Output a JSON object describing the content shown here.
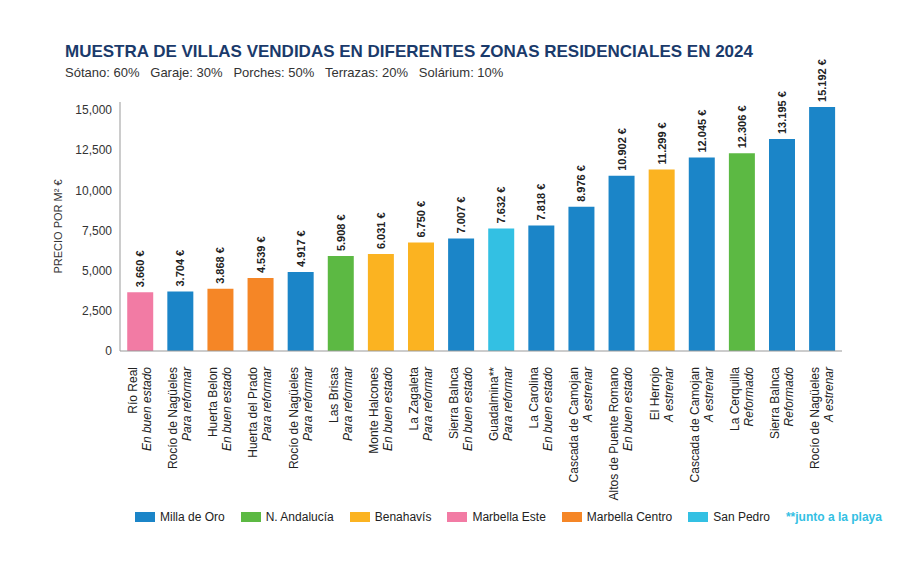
{
  "chart_data": {
    "type": "bar",
    "title": "MUESTRA DE VILLAS VENDIDAS EN DIFERENTES ZONAS RESIDENCIALES EN 2024",
    "subtitle": "Sótano: 60%   Garaje: 30%   Porches: 50%   Terrazas: 20%   Solárium: 10%",
    "y_label": "PRECIO POR M² €",
    "categories": [
      "Río Real",
      "Rocío de Nagüeles",
      "Huerta Belon",
      "Huerta del Prado",
      "Rocío de Nagüeles",
      "Las Brisas",
      "Monte Halcones",
      "La Zagaleta",
      "Sierra Balnca",
      "Guadalmina**",
      "La Carolina",
      "Cascada de Camojan",
      "Altos de Puente Romano",
      "El Herrojo",
      "Cascada de Camojan",
      "La Cerquilla",
      "Sierra Balnca",
      "Rocío de Nagüeles"
    ],
    "conditions": [
      "En buen estado",
      "Para reformar",
      "En buen estado",
      "Para reformar",
      "Para reformar",
      "Para reformar",
      "En buen estado",
      "Para reformar",
      "En buen estado",
      "Para reformar",
      "En buen estado",
      "A estrenar",
      "En buen estado",
      "A estrenar",
      "A estrenar",
      "Reformado",
      "Reformado",
      "A estrenar"
    ],
    "values": [
      3660,
      3704,
      3868,
      4539,
      4917,
      5908,
      6031,
      6750,
      7007,
      7632,
      7818,
      8976,
      10902,
      11299,
      12045,
      12306,
      13195,
      15192
    ],
    "value_labels": [
      "3.660 €",
      "3.704 €",
      "3.868 €",
      "4.539 €",
      "4.917 €",
      "5.908 €",
      "6.031 €",
      "6.750 €",
      "7.007 €",
      "7.632 €",
      "7.818 €",
      "8.976 €",
      "10.902 €",
      "11.299 €",
      "12.045 €",
      "12.306 €",
      "13.195 €",
      "15.192 €"
    ],
    "colors": [
      "#f27ba4",
      "#1b85c8",
      "#f58626",
      "#f58626",
      "#1b85c8",
      "#5cb943",
      "#fbb321",
      "#fbb321",
      "#1b85c8",
      "#33c0e3",
      "#1b85c8",
      "#1b85c8",
      "#1b85c8",
      "#fbb321",
      "#1b85c8",
      "#5cb943",
      "#1b85c8",
      "#1b85c8"
    ],
    "legend_entries": [
      {
        "name": "Milla de Oro",
        "color": "#1b85c8"
      },
      {
        "name": "N. Andalucía",
        "color": "#5cb943"
      },
      {
        "name": "Benahavís",
        "color": "#fbb321"
      },
      {
        "name": "Marbella Este",
        "color": "#f27ba4"
      },
      {
        "name": "Marbella Centro",
        "color": "#f58626"
      },
      {
        "name": "San Pedro",
        "color": "#33c0e3"
      }
    ],
    "note": "**junto a la playa",
    "ylim": [
      0,
      15500
    ],
    "yticks": [
      0,
      {
        "value": 2500,
        "label": "2,500"
      },
      {
        "value": 5000,
        "label": "5,000"
      },
      {
        "value": 7500,
        "label": "7,500"
      },
      {
        "value": 10000,
        "label": "10,000"
      },
      {
        "value": 12500,
        "label": "12,500"
      },
      {
        "value": 15000,
        "label": "15,000"
      }
    ],
    "data_labels": true,
    "grid": false
  }
}
